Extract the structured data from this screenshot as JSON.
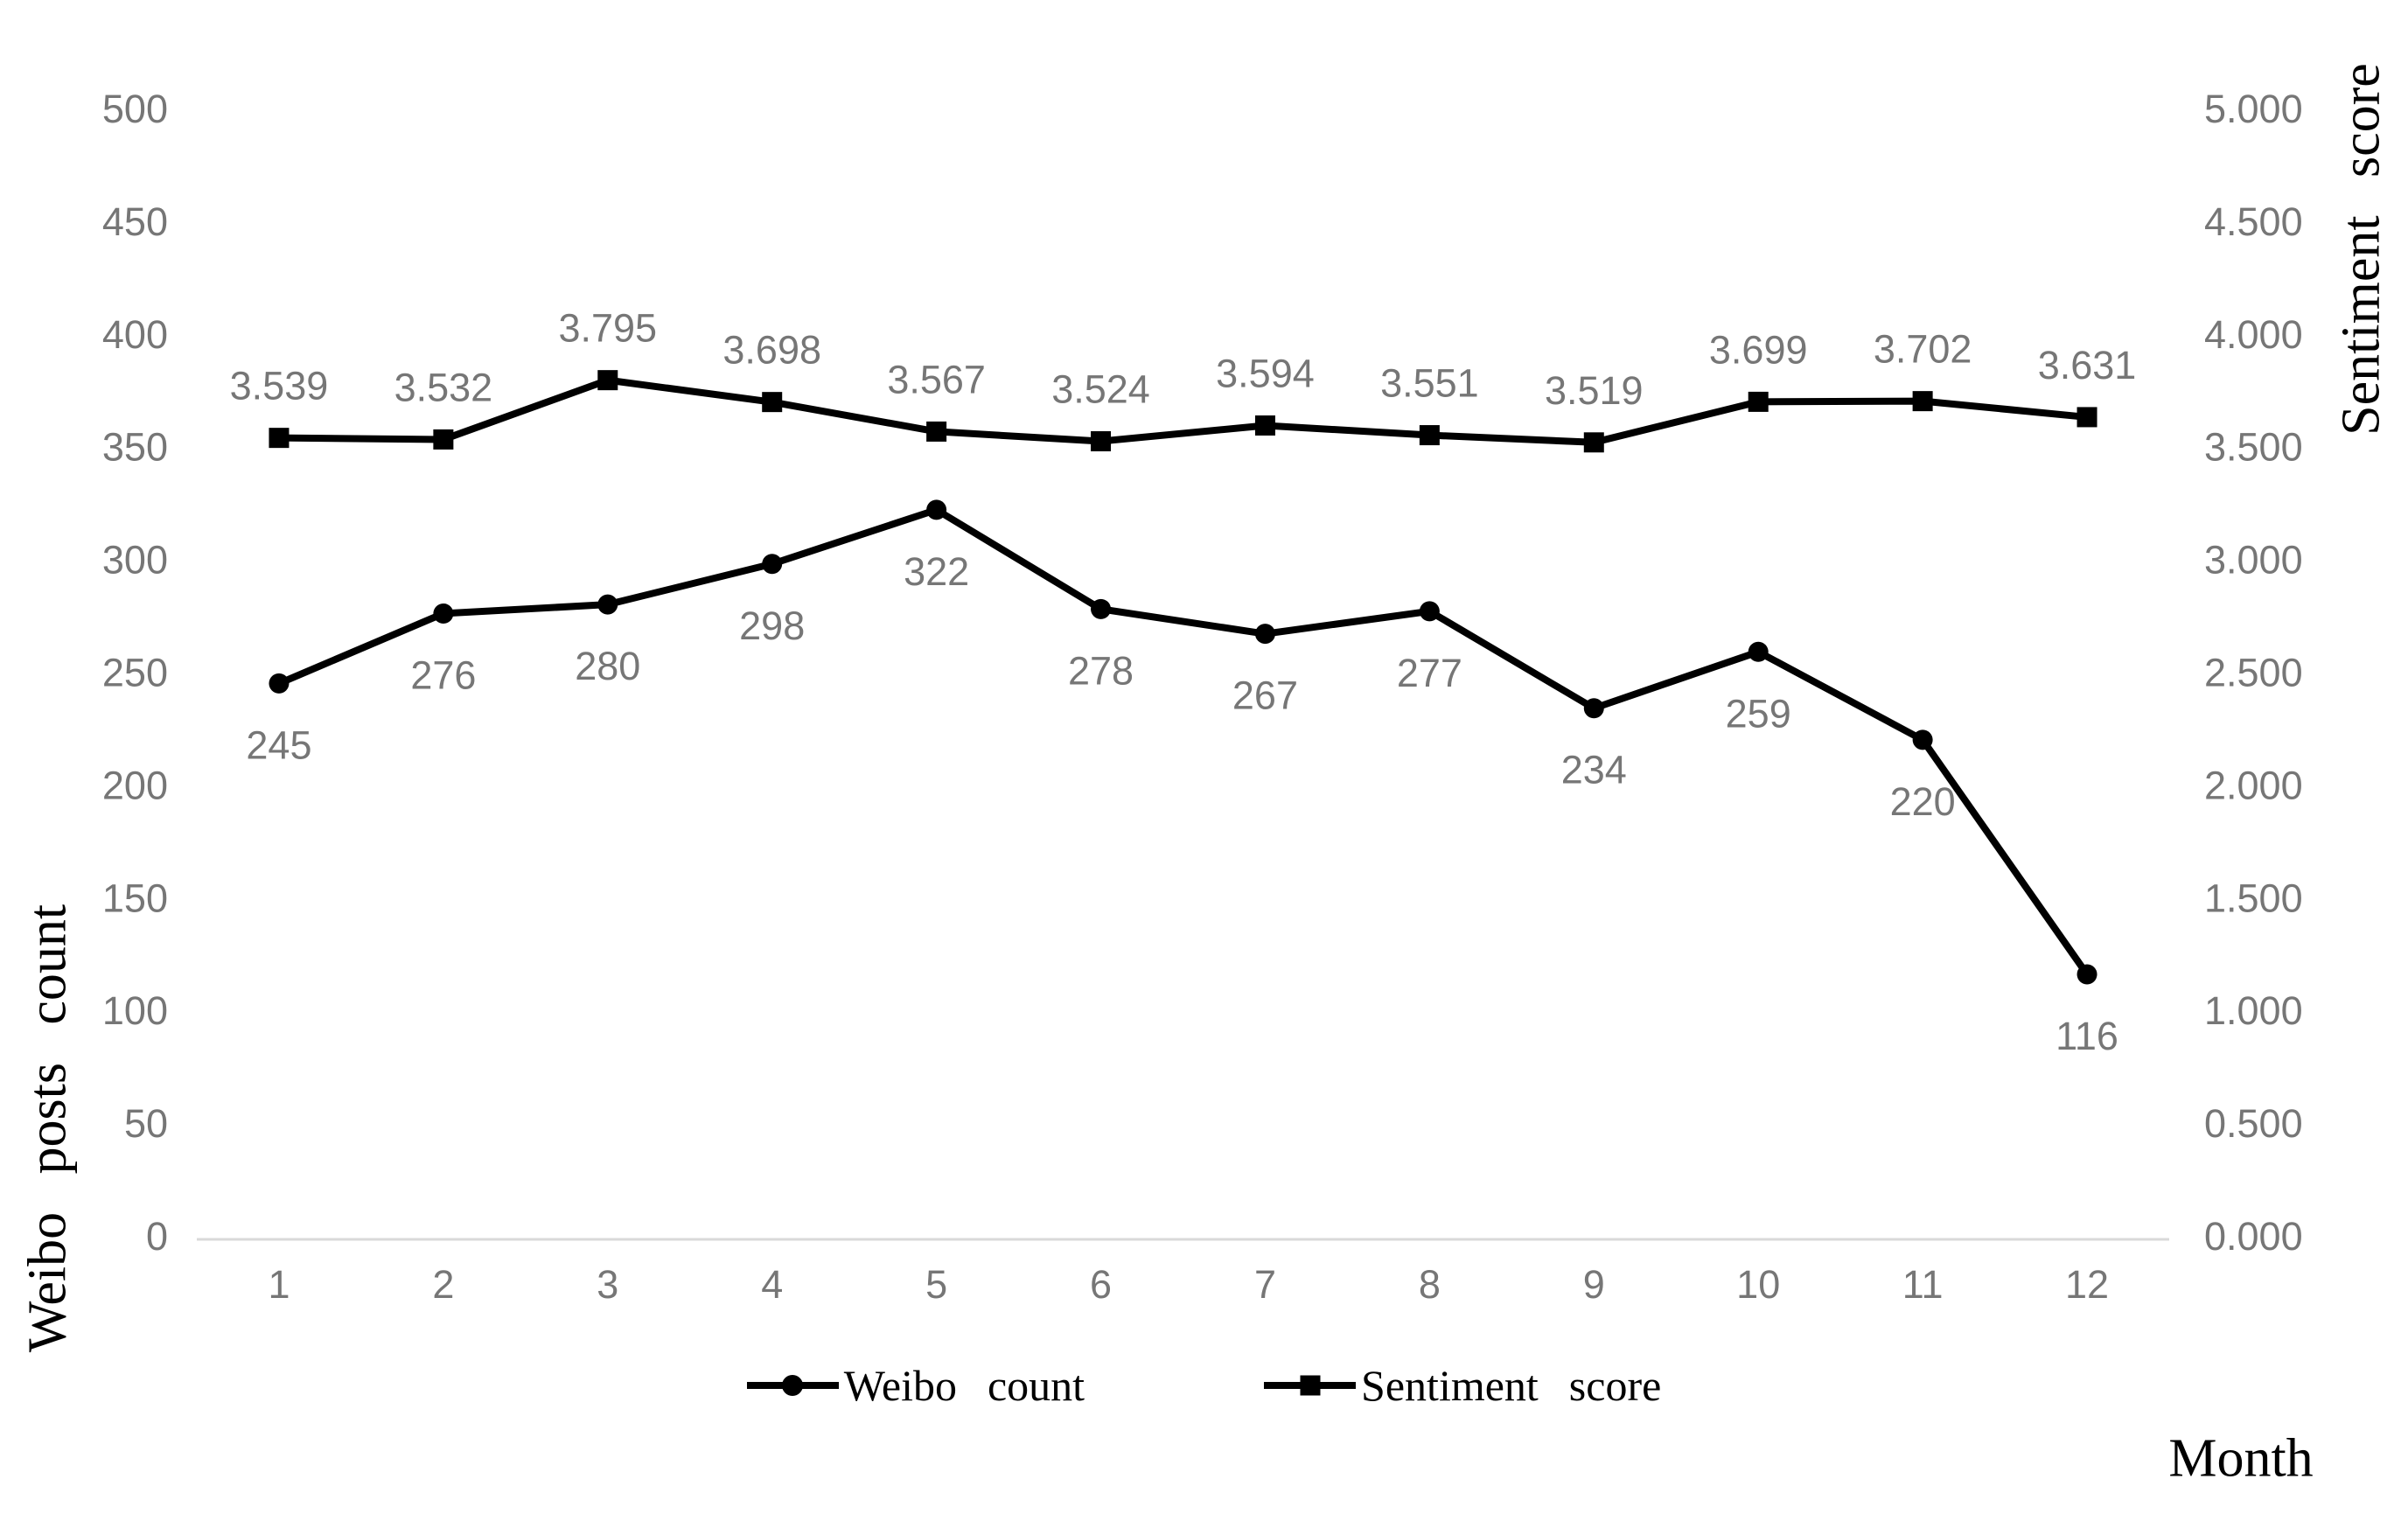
{
  "chart_data": {
    "type": "line",
    "title": "",
    "xlabel": "Month",
    "x_tick_labels": [
      "1",
      "2",
      "3",
      "4",
      "5",
      "6",
      "7",
      "8",
      "9",
      "10",
      "11",
      "12"
    ],
    "left_axis": {
      "title": "Weibo posts count",
      "min": 0,
      "max": 500,
      "tick_labels": [
        "0",
        "50",
        "100",
        "150",
        "200",
        "250",
        "300",
        "350",
        "400",
        "450",
        "500"
      ]
    },
    "right_axis": {
      "title": "Sentiment score",
      "min": 0,
      "max": 5,
      "tick_labels": [
        "0.000",
        "0.500",
        "1.000",
        "1.500",
        "2.000",
        "2.500",
        "3.000",
        "3.500",
        "4.000",
        "4.500",
        "5.000"
      ]
    },
    "grid": "off",
    "legend_position": "bottom",
    "series": [
      {
        "name": "Weibo count",
        "axis": "left",
        "marker": "circle",
        "color": "#000000",
        "values": [
          245,
          276,
          280,
          298,
          322,
          278,
          267,
          277,
          234,
          259,
          220,
          116
        ],
        "point_labels": [
          "245",
          "276",
          "280",
          "298",
          "322",
          "278",
          "267",
          "277",
          "234",
          "259",
          "220",
          "116"
        ],
        "point_labels_position": "below"
      },
      {
        "name": "Sentiment score",
        "axis": "right",
        "marker": "square",
        "color": "#000000",
        "values": [
          3.539,
          3.532,
          3.795,
          3.698,
          3.567,
          3.524,
          3.594,
          3.551,
          3.519,
          3.699,
          3.702,
          3.631
        ],
        "point_labels": [
          "3.539",
          "3.532",
          "3.795",
          "3.698",
          "3.567",
          "3.524",
          "3.594",
          "3.551",
          "3.519",
          "3.699",
          "3.702",
          "3.631"
        ],
        "point_labels_position": "above"
      }
    ],
    "colors": {
      "series": "#000000",
      "tick_text": "#767676",
      "data_label_text": "#767676",
      "axis_line": "#d9d9d9",
      "title_text": "#000000",
      "background": "#ffffff"
    }
  }
}
